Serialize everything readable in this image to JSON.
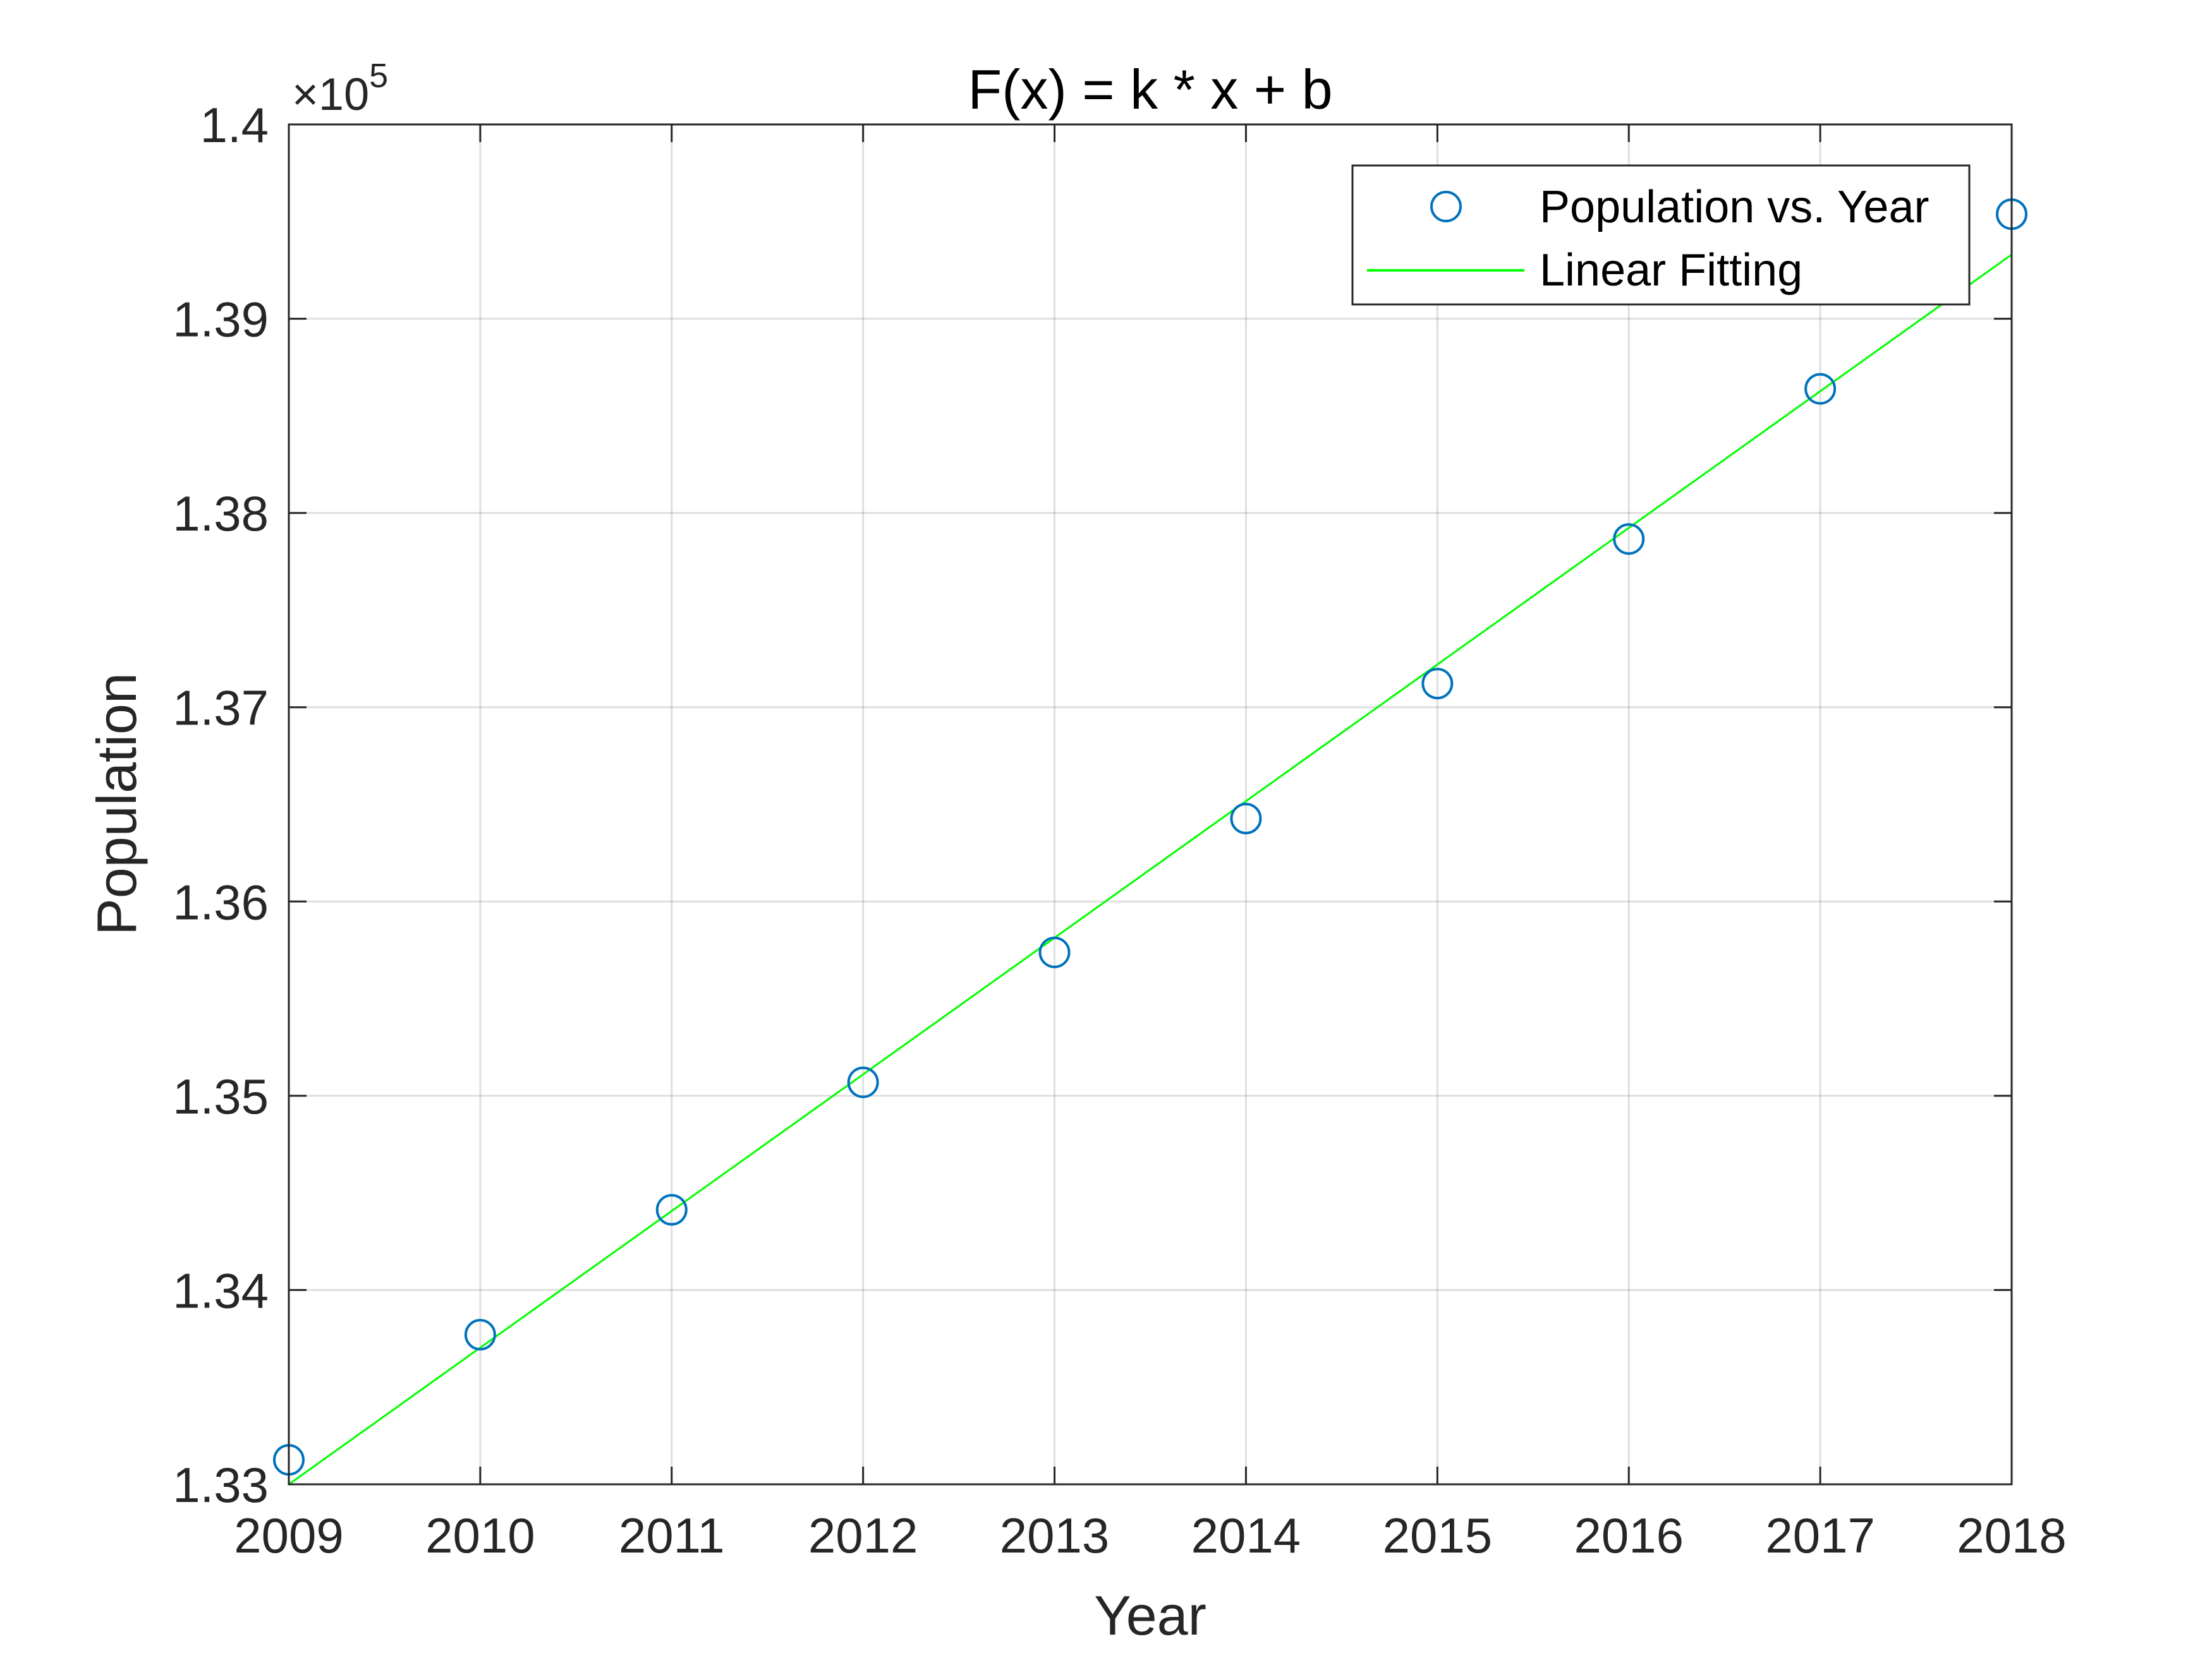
{
  "chart_data": {
    "type": "scatter",
    "title": "F(x) = k * x + b",
    "xlabel": "Year",
    "ylabel": "Population",
    "x": [
      2009,
      2010,
      2011,
      2012,
      2013,
      2014,
      2015,
      2016,
      2017,
      2018
    ],
    "xlim": [
      2009,
      2018
    ],
    "ylim": [
      133000,
      140000
    ],
    "xticks": [
      2009,
      2010,
      2011,
      2012,
      2013,
      2014,
      2015,
      2016,
      2017,
      2018
    ],
    "xtick_labels": [
      "2009",
      "2010",
      "2011",
      "2012",
      "2013",
      "2014",
      "2015",
      "2016",
      "2017",
      "2018"
    ],
    "yticks": [
      133000,
      134000,
      135000,
      136000,
      137000,
      138000,
      139000,
      140000
    ],
    "ytick_labels": [
      "1.33",
      "1.34",
      "1.35",
      "1.36",
      "1.37",
      "1.38",
      "1.39",
      "1.4"
    ],
    "y_exponent_label": {
      "base": "×10",
      "power": "5"
    },
    "grid": true,
    "legend_position": "top-right",
    "series": [
      {
        "name": "Population vs. Year",
        "type": "scatter",
        "marker": "circle",
        "color": "#0072BD",
        "x": [
          2009,
          2010,
          2011,
          2012,
          2013,
          2014,
          2015,
          2016,
          2017,
          2018
        ],
        "y": [
          133126,
          133770,
          134413,
          135069,
          135738,
          136427,
          137122,
          137866,
          138639,
          139538
        ]
      },
      {
        "name": "Linear Fitting",
        "type": "line",
        "color": "#00FF00",
        "x": [
          2009,
          2018
        ],
        "y": [
          133000,
          139330
        ]
      }
    ]
  }
}
